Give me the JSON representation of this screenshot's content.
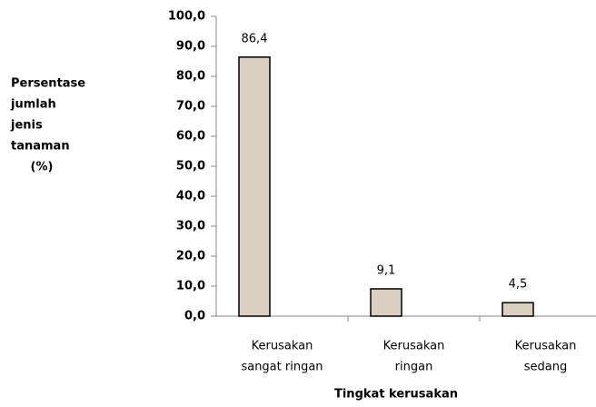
{
  "chart_data": {
    "type": "bar",
    "ylabel": [
      "Persentase",
      "jumlah",
      "jenis",
      "tanaman",
      "(%)"
    ],
    "xlabel": "Tingkat kerusakan",
    "categories": [
      [
        "Kerusakan",
        "sangat ringan"
      ],
      [
        "Kerusakan",
        "ringan"
      ],
      [
        "Kerusakan",
        "sedang"
      ]
    ],
    "values": [
      86.4,
      9.1,
      4.5
    ],
    "value_labels": [
      "86,4",
      "9,1",
      "4,5"
    ],
    "color": "#d9d0c1",
    "ylim": [
      0,
      100
    ],
    "yticks": [
      {
        "value": 0,
        "label": "0,0"
      },
      {
        "value": 10,
        "label": "10,0"
      },
      {
        "value": 20,
        "label": "20,0"
      },
      {
        "value": 30,
        "label": "30,0"
      },
      {
        "value": 40,
        "label": "40,0"
      },
      {
        "value": 50,
        "label": "50,0"
      },
      {
        "value": 60,
        "label": "60,0"
      },
      {
        "value": 70,
        "label": "70,0"
      },
      {
        "value": 80,
        "label": "80,0"
      },
      {
        "value": 90,
        "label": "90,0"
      },
      {
        "value": 100,
        "label": "100,0"
      }
    ]
  }
}
